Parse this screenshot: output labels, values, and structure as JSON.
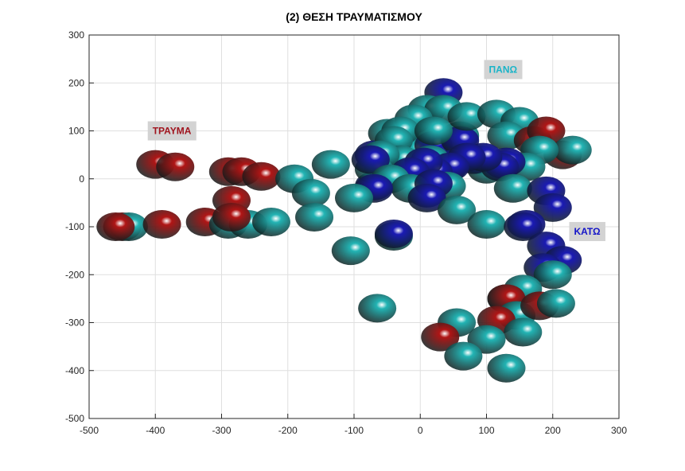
{
  "chart_data": {
    "type": "scatter",
    "title": "(2) ΘΕΣΗ ΤΡΑΥΜΑΤΙΣΜΟΥ",
    "xlabel": "",
    "ylabel": "",
    "xlim": [
      -500,
      300
    ],
    "ylim": [
      -500,
      300
    ],
    "x_ticks": [
      -500,
      -400,
      -300,
      -200,
      -100,
      0,
      100,
      200,
      300
    ],
    "y_ticks": [
      -500,
      -400,
      -300,
      -200,
      -100,
      0,
      100,
      200,
      300
    ],
    "grid": true,
    "marker": "sphere",
    "colors": {
      "red": "#b01515",
      "blue": "#1a1ab4",
      "cyan": "#22b4b4"
    },
    "annotations": [
      {
        "text": "ΤΡΑΥΜΑ",
        "x": -375,
        "y": 100,
        "color": "#a0141e"
      },
      {
        "text": "ΠΑΝΩ",
        "x": 125,
        "y": 228,
        "color": "#1ab4c8"
      },
      {
        "text": "ΚΑΤΩ",
        "x": 252,
        "y": -110,
        "color": "#1414c8"
      }
    ],
    "points": [
      {
        "x": 10,
        "y": 85,
        "c": "cyan"
      },
      {
        "x": 60,
        "y": 90,
        "c": "cyan"
      },
      {
        "x": -50,
        "y": 95,
        "c": "cyan"
      },
      {
        "x": 90,
        "y": 40,
        "c": "cyan"
      },
      {
        "x": -10,
        "y": 60,
        "c": "cyan"
      },
      {
        "x": 40,
        "y": 20,
        "c": "cyan"
      },
      {
        "x": -55,
        "y": 20,
        "c": "cyan"
      },
      {
        "x": 100,
        "y": 20,
        "c": "cyan"
      },
      {
        "x": 35,
        "y": 180,
        "c": "blue"
      },
      {
        "x": -70,
        "y": 50,
        "c": "blue"
      },
      {
        "x": 20,
        "y": 70,
        "c": "blue"
      },
      {
        "x": 60,
        "y": 80,
        "c": "blue"
      },
      {
        "x": 80,
        "y": 40,
        "c": "blue"
      },
      {
        "x": -30,
        "y": 10,
        "c": "blue"
      },
      {
        "x": 45,
        "y": 30,
        "c": "blue"
      },
      {
        "x": 125,
        "y": 30,
        "c": "blue"
      },
      {
        "x": 10,
        "y": -30,
        "c": "blue"
      },
      {
        "x": -70,
        "y": -15,
        "c": "blue"
      },
      {
        "x": 10,
        "y": 145,
        "c": "cyan"
      },
      {
        "x": 35,
        "y": 145,
        "c": "cyan"
      },
      {
        "x": 70,
        "y": 130,
        "c": "cyan"
      },
      {
        "x": 115,
        "y": 135,
        "c": "cyan"
      },
      {
        "x": 150,
        "y": 120,
        "c": "cyan"
      },
      {
        "x": -10,
        "y": 125,
        "c": "cyan"
      },
      {
        "x": -30,
        "y": 100,
        "c": "cyan"
      },
      {
        "x": 130,
        "y": 90,
        "c": "cyan"
      },
      {
        "x": 20,
        "y": 100,
        "c": "cyan"
      },
      {
        "x": -40,
        "y": 80,
        "c": "cyan"
      },
      {
        "x": 170,
        "y": 80,
        "c": "red"
      },
      {
        "x": 190,
        "y": 100,
        "c": "red"
      },
      {
        "x": 215,
        "y": 50,
        "c": "red"
      },
      {
        "x": 230,
        "y": 60,
        "c": "cyan"
      },
      {
        "x": 180,
        "y": 60,
        "c": "cyan"
      },
      {
        "x": -30,
        "y": 40,
        "c": "cyan"
      },
      {
        "x": -60,
        "y": 50,
        "c": "cyan"
      },
      {
        "x": -70,
        "y": 20,
        "c": "cyan"
      },
      {
        "x": 15,
        "y": 40,
        "c": "cyan"
      },
      {
        "x": 160,
        "y": 25,
        "c": "cyan"
      },
      {
        "x": 130,
        "y": 35,
        "c": "blue"
      },
      {
        "x": 120,
        "y": 25,
        "c": "blue"
      },
      {
        "x": 95,
        "y": 45,
        "c": "blue"
      },
      {
        "x": 70,
        "y": 45,
        "c": "blue"
      },
      {
        "x": 45,
        "y": 25,
        "c": "blue"
      },
      {
        "x": 20,
        "y": 15,
        "c": "blue"
      },
      {
        "x": 5,
        "y": 35,
        "c": "blue"
      },
      {
        "x": -15,
        "y": 15,
        "c": "blue"
      },
      {
        "x": -75,
        "y": 40,
        "c": "blue"
      },
      {
        "x": -45,
        "y": 0,
        "c": "cyan"
      },
      {
        "x": -15,
        "y": -20,
        "c": "cyan"
      },
      {
        "x": 40,
        "y": -15,
        "c": "cyan"
      },
      {
        "x": 20,
        "y": -10,
        "c": "blue"
      },
      {
        "x": -70,
        "y": -20,
        "c": "blue"
      },
      {
        "x": 10,
        "y": -40,
        "c": "blue"
      },
      {
        "x": 140,
        "y": -20,
        "c": "cyan"
      },
      {
        "x": 190,
        "y": -25,
        "c": "blue"
      },
      {
        "x": 200,
        "y": -60,
        "c": "blue"
      },
      {
        "x": 55,
        "y": -65,
        "c": "cyan"
      },
      {
        "x": 100,
        "y": -95,
        "c": "cyan"
      },
      {
        "x": 160,
        "y": -95,
        "c": "blue"
      },
      {
        "x": 155,
        "y": -100,
        "c": "blue"
      },
      {
        "x": -400,
        "y": 30,
        "c": "red"
      },
      {
        "x": -370,
        "y": 25,
        "c": "red"
      },
      {
        "x": -290,
        "y": 15,
        "c": "red"
      },
      {
        "x": -270,
        "y": 15,
        "c": "red"
      },
      {
        "x": -240,
        "y": 5,
        "c": "red"
      },
      {
        "x": -190,
        "y": 0,
        "c": "cyan"
      },
      {
        "x": -135,
        "y": 30,
        "c": "cyan"
      },
      {
        "x": -165,
        "y": -30,
        "c": "cyan"
      },
      {
        "x": -285,
        "y": -45,
        "c": "red"
      },
      {
        "x": -100,
        "y": -40,
        "c": "cyan"
      },
      {
        "x": -450,
        "y": -100,
        "c": "red"
      },
      {
        "x": -440,
        "y": -100,
        "c": "cyan"
      },
      {
        "x": -460,
        "y": -100,
        "c": "red"
      },
      {
        "x": -390,
        "y": -95,
        "c": "red"
      },
      {
        "x": -325,
        "y": -90,
        "c": "red"
      },
      {
        "x": -290,
        "y": -95,
        "c": "cyan"
      },
      {
        "x": -260,
        "y": -95,
        "c": "cyan"
      },
      {
        "x": -225,
        "y": -90,
        "c": "cyan"
      },
      {
        "x": -285,
        "y": -80,
        "c": "red"
      },
      {
        "x": -160,
        "y": -80,
        "c": "cyan"
      },
      {
        "x": -40,
        "y": -120,
        "c": "cyan"
      },
      {
        "x": -40,
        "y": -115,
        "c": "blue"
      },
      {
        "x": -105,
        "y": -150,
        "c": "cyan"
      },
      {
        "x": 190,
        "y": -140,
        "c": "blue"
      },
      {
        "x": 215,
        "y": -170,
        "c": "blue"
      },
      {
        "x": 185,
        "y": -185,
        "c": "blue"
      },
      {
        "x": 200,
        "y": -200,
        "c": "cyan"
      },
      {
        "x": 155,
        "y": -230,
        "c": "cyan"
      },
      {
        "x": 130,
        "y": -250,
        "c": "cyan"
      },
      {
        "x": 130,
        "y": -250,
        "c": "red"
      },
      {
        "x": 145,
        "y": -285,
        "c": "cyan"
      },
      {
        "x": 180,
        "y": -265,
        "c": "red"
      },
      {
        "x": 205,
        "y": -260,
        "c": "cyan"
      },
      {
        "x": 115,
        "y": -295,
        "c": "red"
      },
      {
        "x": -65,
        "y": -270,
        "c": "cyan"
      },
      {
        "x": 55,
        "y": -300,
        "c": "cyan"
      },
      {
        "x": 155,
        "y": -320,
        "c": "cyan"
      },
      {
        "x": 30,
        "y": -330,
        "c": "red"
      },
      {
        "x": 100,
        "y": -335,
        "c": "cyan"
      },
      {
        "x": 65,
        "y": -370,
        "c": "cyan"
      },
      {
        "x": 130,
        "y": -395,
        "c": "cyan"
      }
    ]
  }
}
